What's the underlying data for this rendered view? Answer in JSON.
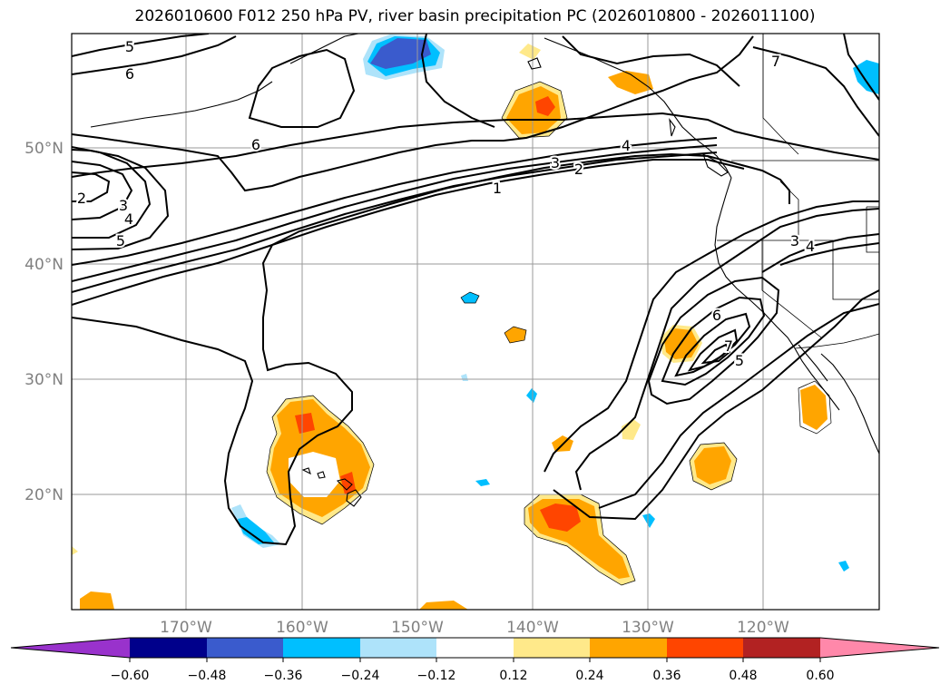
{
  "title": "2026010600 F012 250 hPa PV, river basin precipitation PC (2026010800 - 2026011100)",
  "map": {
    "lat_labels": [
      "50°N",
      "40°N",
      "30°N",
      "20°N"
    ],
    "lon_labels": [
      "170°W",
      "160°W",
      "150°W",
      "140°W",
      "130°W",
      "120°W"
    ],
    "label_color": "#808080",
    "region": "North Pacific / western North America"
  },
  "contours": {
    "variable": "250 hPa PV",
    "levels": [
      1,
      2,
      3,
      4,
      5,
      6,
      7
    ],
    "inline_labels": [
      "5",
      "6",
      "6",
      "7",
      "4",
      "3",
      "2",
      "1",
      "2",
      "3",
      "4",
      "5",
      "3",
      "4",
      "6",
      "7",
      "5"
    ]
  },
  "colorbar": {
    "variable": "river basin precipitation PC",
    "tick_labels": [
      "−0.60",
      "−0.48",
      "−0.36",
      "−0.24",
      "−0.12",
      "0.12",
      "0.24",
      "0.36",
      "0.48",
      "0.60"
    ],
    "colors": [
      "#9932cc",
      "#00008b",
      "#3a5bcd",
      "#00bfff",
      "#aee3fa",
      "#ffffff",
      "#ffe98a",
      "#ffa500",
      "#ff4500",
      "#b22222",
      "#ff88aa"
    ]
  }
}
